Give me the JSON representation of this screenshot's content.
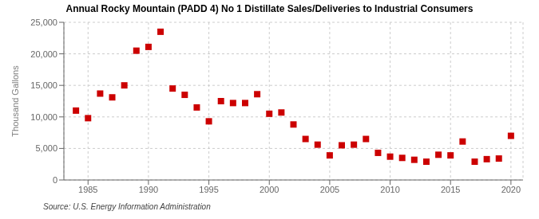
{
  "chart_data": {
    "type": "scatter",
    "title": "Annual Rocky Mountain (PADD 4) No 1 Distillate Sales/Deliveries to Industrial Consumers",
    "ylabel": "Thousand Gallons",
    "source": "Source: U.S. Energy Information Administration",
    "x": [
      1984,
      1985,
      1986,
      1987,
      1988,
      1989,
      1990,
      1991,
      1992,
      1993,
      1994,
      1995,
      1996,
      1997,
      1998,
      1999,
      2000,
      2001,
      2002,
      2003,
      2004,
      2005,
      2006,
      2007,
      2008,
      2009,
      2010,
      2011,
      2012,
      2013,
      2014,
      2015,
      2016,
      2017,
      2018,
      2019,
      2020
    ],
    "values": [
      11000,
      9800,
      13700,
      13100,
      15000,
      20500,
      21100,
      23500,
      14500,
      13500,
      11500,
      9300,
      12500,
      12200,
      12200,
      13600,
      10500,
      10700,
      8800,
      6500,
      5600,
      3900,
      5500,
      5600,
      6500,
      4300,
      3700,
      3500,
      3200,
      2900,
      4000,
      3900,
      6100,
      2900,
      3300,
      3400,
      7000
    ],
    "color": "#cc0000",
    "marker": "square",
    "grid": true,
    "xlim": [
      1983,
      2021
    ],
    "ylim": [
      0,
      25000
    ],
    "xticks": [
      1985,
      1990,
      1995,
      2000,
      2005,
      2010,
      2015,
      2020
    ],
    "yticks": [
      0,
      {
        "value": 5000,
        "label": "5,000"
      },
      {
        "value": 10000,
        "label": "10,000"
      },
      {
        "value": 15000,
        "label": "15,000"
      },
      {
        "value": 20000,
        "label": "20,000"
      },
      {
        "value": 25000,
        "label": "25,000"
      }
    ]
  }
}
